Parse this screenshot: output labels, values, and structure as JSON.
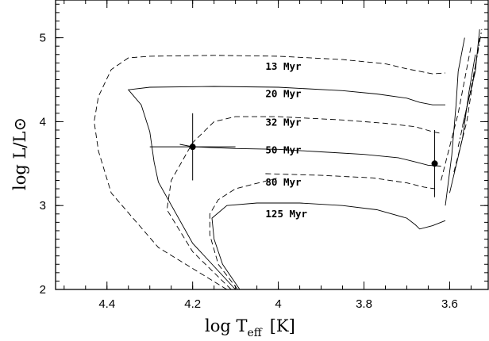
{
  "chart_data": {
    "type": "line",
    "title": "",
    "xlabel": {
      "main": "log T",
      "sub": "eff",
      "unit": "[K]"
    },
    "ylabel": {
      "main": "log L/L",
      "symbol": "⊙"
    },
    "xlim": [
      4.52,
      3.51
    ],
    "ylim": [
      2.0,
      5.45
    ],
    "x_reversed": true,
    "grid": false,
    "x_ticks": [
      4.4,
      4.2,
      4.0,
      3.8,
      3.6
    ],
    "x_tick_labels": [
      "4.4",
      "4.2",
      "4",
      "3.8",
      "3.6"
    ],
    "y_ticks": [
      2,
      3,
      4,
      5
    ],
    "y_tick_labels": [
      "2",
      "3",
      "4",
      "5"
    ],
    "isochrone_labels": [
      {
        "text": "13 Myr",
        "x": 4.03,
        "y": 4.62
      },
      {
        "text": "20 Myr",
        "x": 4.03,
        "y": 4.29
      },
      {
        "text": "32 Myr",
        "x": 4.03,
        "y": 3.95
      },
      {
        "text": "50 Myr",
        "x": 4.03,
        "y": 3.62
      },
      {
        "text": "80 Myr",
        "x": 4.03,
        "y": 3.24
      },
      {
        "text": "125 Myr",
        "x": 4.03,
        "y": 2.86
      }
    ],
    "series": [
      {
        "style": "dashed",
        "points": [
          [
            4.03,
            3.38
          ],
          [
            3.9,
            3.36
          ],
          [
            3.78,
            3.33
          ],
          [
            3.7,
            3.27
          ],
          [
            3.66,
            3.22
          ],
          [
            3.635,
            3.2
          ]
        ]
      },
      {
        "style": "solid",
        "points": [
          [
            4.1,
            2.0
          ],
          [
            4.2,
            2.55
          ],
          [
            4.28,
            3.28
          ],
          [
            4.29,
            3.52
          ],
          [
            4.3,
            3.88
          ],
          [
            4.32,
            4.2
          ],
          [
            4.35,
            4.38
          ],
          [
            4.3,
            4.41
          ],
          [
            4.15,
            4.42
          ],
          [
            4.0,
            4.41
          ],
          [
            3.85,
            4.37
          ],
          [
            3.77,
            4.33
          ],
          [
            3.7,
            4.28
          ],
          [
            3.67,
            4.23
          ],
          [
            3.64,
            4.2
          ],
          [
            3.61,
            4.2
          ]
        ]
      },
      {
        "style": "dashed",
        "points": [
          [
            4.12,
            2.0
          ],
          [
            4.28,
            2.5
          ],
          [
            4.39,
            3.15
          ],
          [
            4.42,
            3.65
          ],
          [
            4.43,
            4.0
          ],
          [
            4.42,
            4.3
          ],
          [
            4.39,
            4.62
          ],
          [
            4.35,
            4.76
          ],
          [
            4.3,
            4.78
          ],
          [
            4.15,
            4.79
          ],
          [
            4.0,
            4.78
          ],
          [
            3.85,
            4.74
          ],
          [
            3.75,
            4.69
          ],
          [
            3.7,
            4.63
          ],
          [
            3.64,
            4.57
          ],
          [
            3.61,
            4.58
          ]
        ]
      },
      {
        "style": "dashed",
        "points": [
          [
            4.11,
            2.0
          ],
          [
            4.2,
            2.45
          ],
          [
            4.26,
            2.95
          ],
          [
            4.25,
            3.3
          ],
          [
            4.2,
            3.75
          ],
          [
            4.15,
            4.0
          ],
          [
            4.1,
            4.06
          ],
          [
            4.0,
            4.06
          ],
          [
            3.85,
            4.02
          ],
          [
            3.75,
            3.98
          ],
          [
            3.68,
            3.94
          ],
          [
            3.64,
            3.88
          ],
          [
            3.62,
            3.86
          ]
        ]
      },
      {
        "style": "solid",
        "points": [
          [
            4.09,
            2.0
          ],
          [
            4.13,
            2.3
          ],
          [
            4.15,
            2.6
          ],
          [
            4.155,
            2.85
          ],
          [
            4.12,
            3.0
          ],
          [
            4.05,
            3.03
          ],
          [
            3.95,
            3.03
          ],
          [
            3.85,
            3.0
          ],
          [
            3.77,
            2.95
          ],
          [
            3.7,
            2.85
          ],
          [
            3.68,
            2.77
          ],
          [
            3.67,
            2.72
          ],
          [
            3.64,
            2.76
          ],
          [
            3.61,
            2.82
          ]
        ]
      },
      {
        "style": "dashed",
        "points": [
          [
            4.095,
            2.0
          ],
          [
            4.14,
            2.3
          ],
          [
            4.16,
            2.65
          ],
          [
            4.16,
            2.9
          ],
          [
            4.14,
            3.07
          ],
          [
            4.1,
            3.2
          ],
          [
            4.0,
            3.33
          ]
        ]
      },
      {
        "style": "solid",
        "points": [
          [
            4.23,
            3.73
          ],
          [
            4.2,
            3.7
          ],
          [
            4.1,
            3.68
          ],
          [
            4.0,
            3.67
          ],
          [
            3.9,
            3.64
          ],
          [
            3.8,
            3.61
          ],
          [
            3.72,
            3.57
          ],
          [
            3.68,
            3.52
          ],
          [
            3.65,
            3.48
          ],
          [
            3.62,
            3.47
          ]
        ]
      }
    ],
    "data_points": [
      {
        "x": 4.2,
        "y": 3.7,
        "xerr": 0.1,
        "yerr": 0.4
      },
      {
        "x": 3.635,
        "y": 3.5,
        "xerr": 0.0,
        "yerr": 0.4
      }
    ],
    "branches": [
      {
        "style": "solid",
        "points": [
          [
            3.61,
            3.0
          ],
          [
            3.595,
            3.6
          ],
          [
            3.585,
            4.2
          ],
          [
            3.58,
            4.6
          ],
          [
            3.565,
            5.0
          ]
        ]
      },
      {
        "style": "dashed",
        "points": [
          [
            3.62,
            3.3
          ],
          [
            3.6,
            3.7
          ],
          [
            3.58,
            4.1
          ],
          [
            3.565,
            4.5
          ],
          [
            3.55,
            4.9
          ]
        ]
      },
      {
        "style": "solid",
        "points": [
          [
            3.6,
            3.15
          ],
          [
            3.57,
            3.8
          ],
          [
            3.555,
            4.35
          ],
          [
            3.54,
            4.8
          ]
        ]
      },
      {
        "style": "dashed",
        "points": [
          [
            3.59,
            3.4
          ],
          [
            3.56,
            4.0
          ],
          [
            3.545,
            4.5
          ],
          [
            3.53,
            5.0
          ]
        ]
      },
      {
        "style": "dashdot",
        "points": [
          [
            3.58,
            3.7
          ],
          [
            3.55,
            4.4
          ],
          [
            3.535,
            4.8
          ],
          [
            3.525,
            5.1
          ]
        ]
      },
      {
        "style": "solid",
        "points": [
          [
            3.57,
            3.95
          ],
          [
            3.54,
            4.6
          ],
          [
            3.53,
            5.1
          ]
        ]
      }
    ]
  }
}
